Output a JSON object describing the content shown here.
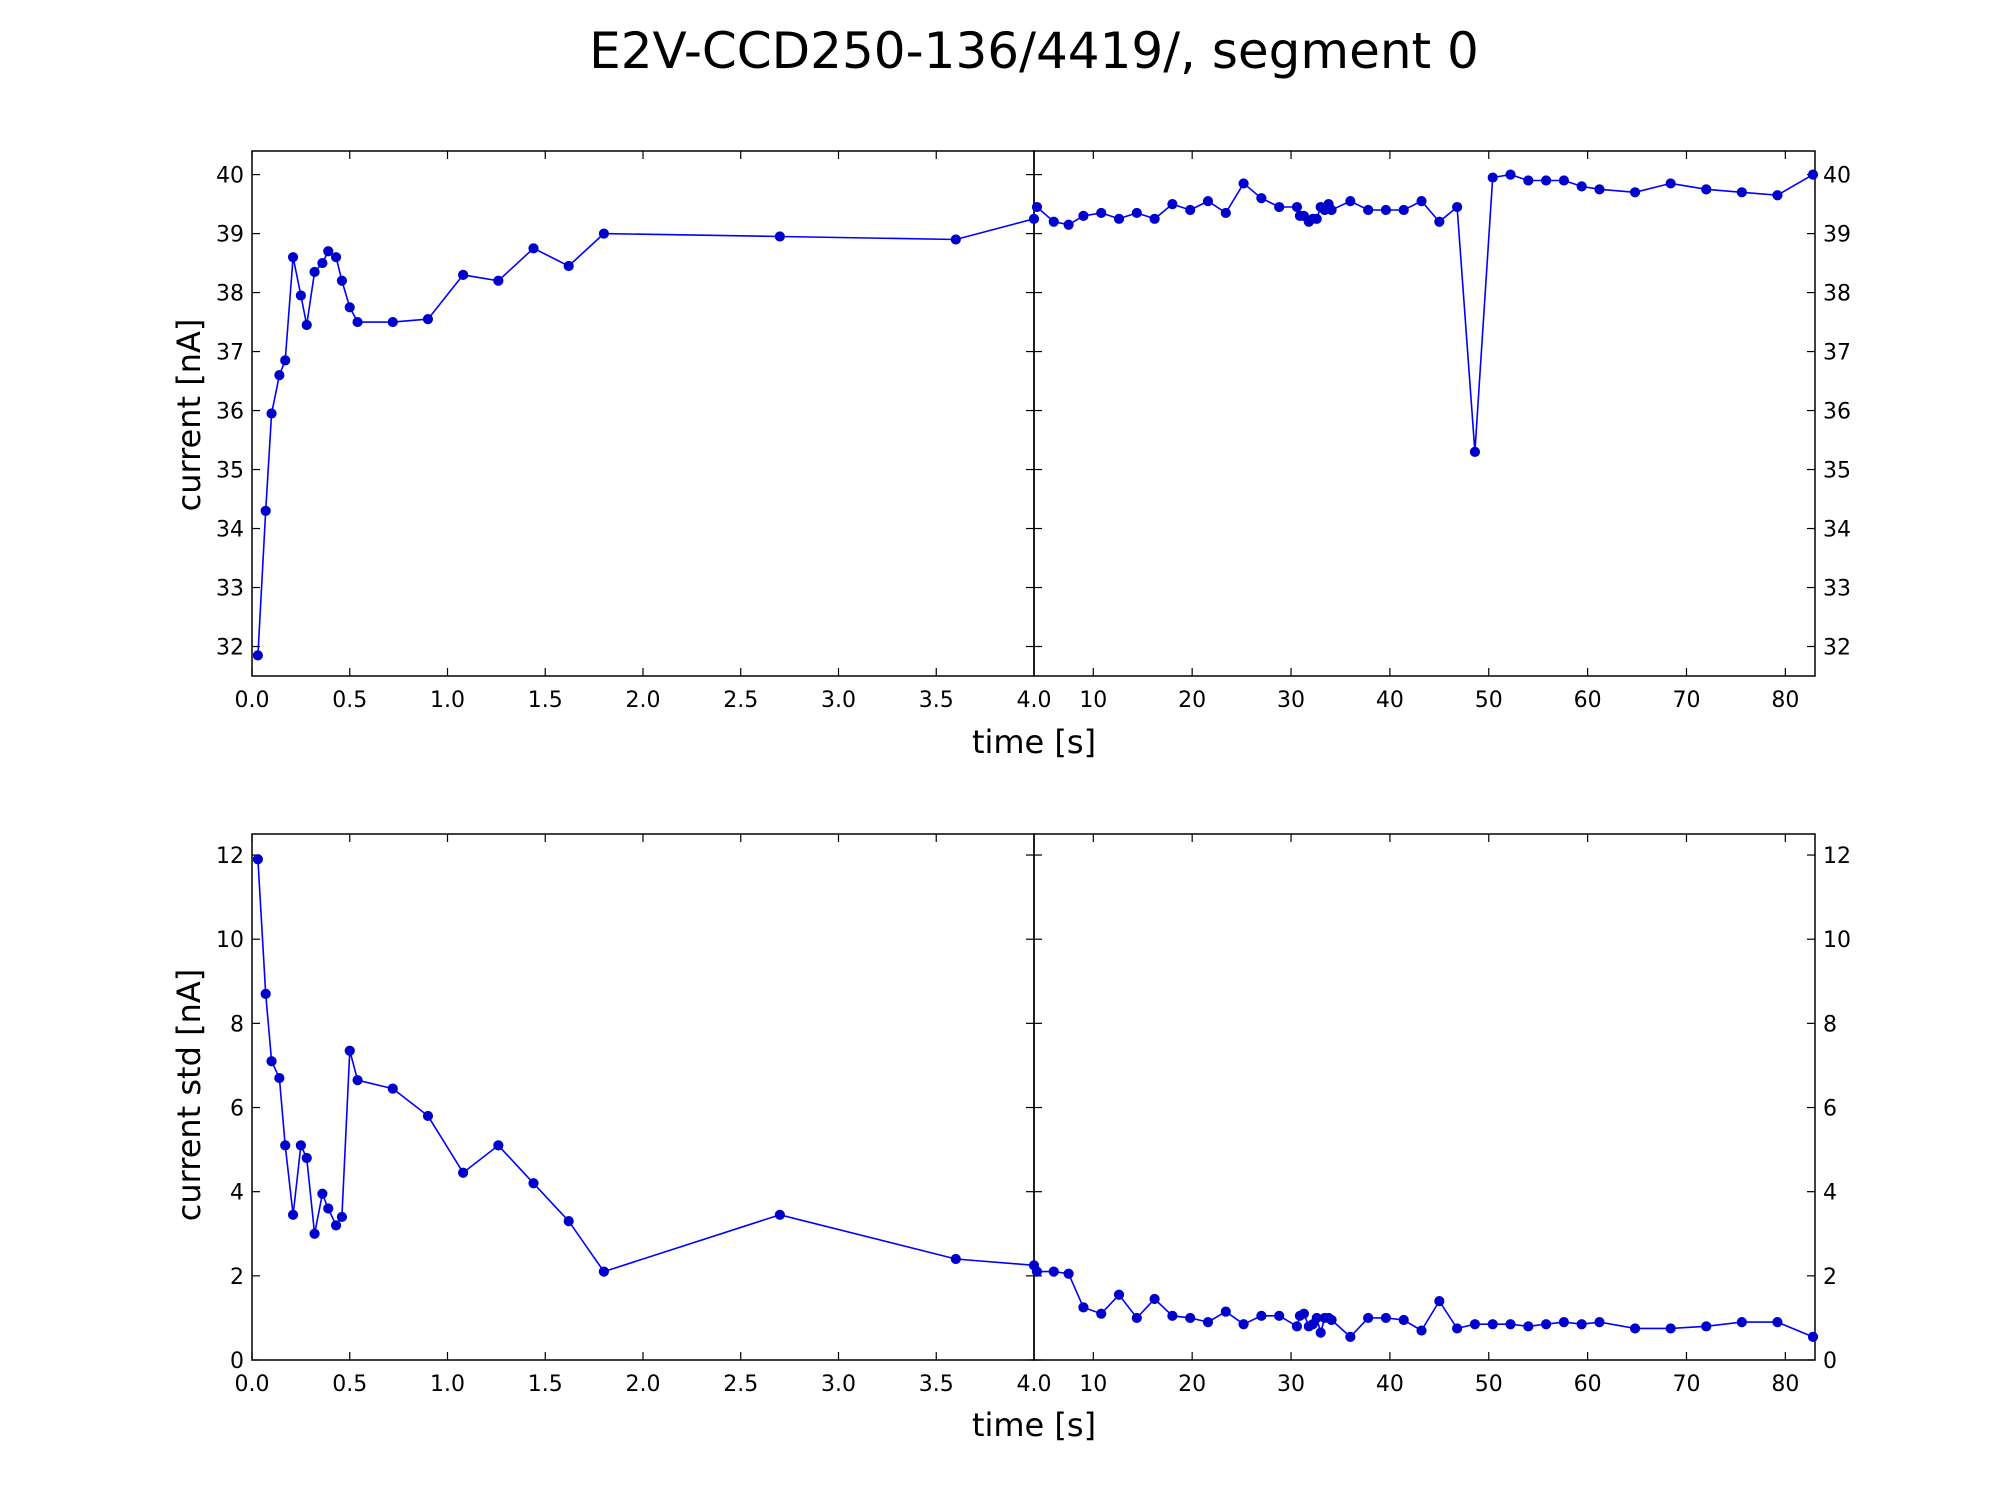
{
  "title": "E2V-CCD250-136/4419/, segment 0",
  "colors": {
    "series": "#0000ff",
    "marker": "#0000cc",
    "axes": "#000000",
    "background": "#ffffff"
  },
  "chart_data": [
    {
      "type": "line",
      "ylabel": "current [nA]",
      "xlabel": "time [s]",
      "ylim": [
        31.5,
        40.4
      ],
      "yticks": [
        32,
        33,
        34,
        35,
        36,
        37,
        38,
        39,
        40
      ],
      "ytick_labels": [
        "32",
        "33",
        "34",
        "35",
        "36",
        "37",
        "38",
        "39",
        "40"
      ],
      "grid": false,
      "left": {
        "xlim": [
          0,
          4.0
        ],
        "xticks": [
          0.0,
          0.5,
          1.0,
          1.5,
          2.0,
          2.5,
          3.0,
          3.5
        ],
        "xtick_labels": [
          "0.0",
          "0.5",
          "1.0",
          "1.5",
          "2.0",
          "2.5",
          "3.0",
          "3.5"
        ],
        "x": [
          0.03,
          0.07,
          0.1,
          0.14,
          0.17,
          0.21,
          0.25,
          0.28,
          0.32,
          0.36,
          0.39,
          0.43,
          0.46,
          0.5,
          0.54,
          0.72,
          0.9,
          1.08,
          1.26,
          1.44,
          1.62,
          1.8,
          2.7,
          3.6,
          4.0
        ],
        "y": [
          31.85,
          34.3,
          35.95,
          36.6,
          36.85,
          38.6,
          37.95,
          37.45,
          38.35,
          38.5,
          38.7,
          38.6,
          38.2,
          37.75,
          37.5,
          37.5,
          37.55,
          38.3,
          38.2,
          38.75,
          38.45,
          39.0,
          38.95,
          38.9,
          39.25
        ]
      },
      "right": {
        "xlim": [
          4.0,
          83
        ],
        "xticks": [
          10,
          20,
          30,
          40,
          50,
          60,
          70,
          80
        ],
        "xtick_labels": [
          "10",
          "20",
          "30",
          "40",
          "50",
          "60",
          "70",
          "80"
        ],
        "left_tick_label": "4.0",
        "x": [
          4.3,
          6.0,
          7.5,
          9.0,
          10.8,
          12.6,
          14.4,
          16.2,
          18.0,
          19.8,
          21.6,
          23.4,
          25.2,
          27.0,
          28.8,
          30.6,
          30.9,
          31.3,
          31.8,
          32.2,
          32.6,
          33.0,
          33.4,
          33.8,
          34.1,
          36.0,
          37.8,
          39.6,
          41.4,
          43.2,
          45.0,
          46.8,
          48.6,
          50.4,
          52.2,
          54.0,
          55.8,
          57.6,
          59.4,
          61.2,
          64.8,
          68.4,
          72.0,
          75.6,
          79.2,
          82.8
        ],
        "y": [
          39.45,
          39.2,
          39.15,
          39.3,
          39.35,
          39.25,
          39.35,
          39.25,
          39.5,
          39.4,
          39.55,
          39.35,
          39.85,
          39.6,
          39.45,
          39.45,
          39.3,
          39.3,
          39.2,
          39.25,
          39.25,
          39.45,
          39.4,
          39.5,
          39.4,
          39.55,
          39.4,
          39.4,
          39.4,
          39.55,
          39.2,
          39.45,
          35.3,
          39.95,
          40.0,
          39.9,
          39.9,
          39.9,
          39.8,
          39.75,
          39.7,
          39.85,
          39.75,
          39.7,
          39.65,
          40.0
        ]
      }
    },
    {
      "type": "line",
      "ylabel": "current std [nA]",
      "xlabel": "time [s]",
      "ylim": [
        0,
        12.5
      ],
      "yticks": [
        0,
        2,
        4,
        6,
        8,
        10,
        12
      ],
      "ytick_labels": [
        "0",
        "2",
        "4",
        "6",
        "8",
        "10",
        "12"
      ],
      "grid": false,
      "left": {
        "xlim": [
          0,
          4.0
        ],
        "xticks": [
          0.0,
          0.5,
          1.0,
          1.5,
          2.0,
          2.5,
          3.0,
          3.5
        ],
        "xtick_labels": [
          "0.0",
          "0.5",
          "1.0",
          "1.5",
          "2.0",
          "2.5",
          "3.0",
          "3.5"
        ],
        "x": [
          0.03,
          0.07,
          0.1,
          0.14,
          0.17,
          0.21,
          0.25,
          0.28,
          0.32,
          0.36,
          0.39,
          0.43,
          0.46,
          0.5,
          0.54,
          0.72,
          0.9,
          1.08,
          1.26,
          1.44,
          1.62,
          1.8,
          2.7,
          3.6,
          4.0
        ],
        "y": [
          11.9,
          8.7,
          7.1,
          6.7,
          5.1,
          3.45,
          5.1,
          4.8,
          3.0,
          3.95,
          3.6,
          3.2,
          3.4,
          7.35,
          6.65,
          6.45,
          5.8,
          4.45,
          5.1,
          4.2,
          3.3,
          2.1,
          3.45,
          2.4,
          2.25
        ]
      },
      "right": {
        "xlim": [
          4.0,
          83
        ],
        "xticks": [
          10,
          20,
          30,
          40,
          50,
          60,
          70,
          80
        ],
        "xtick_labels": [
          "10",
          "20",
          "30",
          "40",
          "50",
          "60",
          "70",
          "80"
        ],
        "left_tick_label": "4.0",
        "x": [
          4.3,
          6.0,
          7.5,
          9.0,
          10.8,
          12.6,
          14.4,
          16.2,
          18.0,
          19.8,
          21.6,
          23.4,
          25.2,
          27.0,
          28.8,
          30.6,
          30.9,
          31.3,
          31.8,
          32.2,
          32.6,
          33.0,
          33.4,
          33.8,
          34.1,
          36.0,
          37.8,
          39.6,
          41.4,
          43.2,
          45.0,
          46.8,
          48.6,
          50.4,
          52.2,
          54.0,
          55.8,
          57.6,
          59.4,
          61.2,
          64.8,
          68.4,
          72.0,
          75.6,
          79.2,
          82.8
        ],
        "y": [
          2.1,
          2.1,
          2.05,
          1.25,
          1.1,
          1.55,
          1.0,
          1.45,
          1.05,
          1.0,
          0.9,
          1.15,
          0.85,
          1.05,
          1.05,
          0.8,
          1.05,
          1.1,
          0.8,
          0.85,
          1.0,
          0.65,
          1.0,
          1.0,
          0.95,
          0.55,
          1.0,
          1.0,
          0.95,
          0.7,
          1.4,
          0.75,
          0.85,
          0.85,
          0.85,
          0.8,
          0.85,
          0.9,
          0.85,
          0.9,
          0.75,
          0.75,
          0.8,
          0.9,
          0.9,
          0.55
        ]
      }
    }
  ]
}
